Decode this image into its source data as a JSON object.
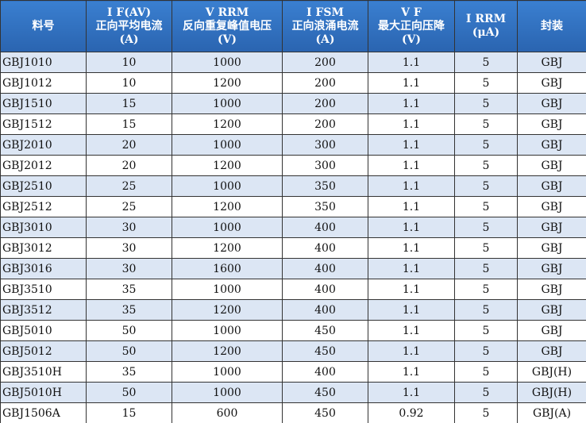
{
  "table": {
    "header": [
      [
        "料号"
      ],
      [
        "I F(AV)",
        "正向平均电流",
        "(A)"
      ],
      [
        "V RRM",
        "反向重复峰值电压",
        "(V)"
      ],
      [
        "I FSM",
        "正向浪涌电流",
        "(A)"
      ],
      [
        "V F",
        "最大正向压降",
        "(V)"
      ],
      [
        "I RRM",
        "(μA)"
      ],
      [
        "封装"
      ]
    ],
    "rows": [
      [
        "GBJ1010",
        "10",
        "1000",
        "200",
        "1.1",
        "5",
        "GBJ"
      ],
      [
        "GBJ1012",
        "10",
        "1200",
        "200",
        "1.1",
        "5",
        "GBJ"
      ],
      [
        "GBJ1510",
        "15",
        "1000",
        "200",
        "1.1",
        "5",
        "GBJ"
      ],
      [
        "GBJ1512",
        "15",
        "1200",
        "200",
        "1.1",
        "5",
        "GBJ"
      ],
      [
        "GBJ2010",
        "20",
        "1000",
        "300",
        "1.1",
        "5",
        "GBJ"
      ],
      [
        "GBJ2012",
        "20",
        "1200",
        "300",
        "1.1",
        "5",
        "GBJ"
      ],
      [
        "GBJ2510",
        "25",
        "1000",
        "350",
        "1.1",
        "5",
        "GBJ"
      ],
      [
        "GBJ2512",
        "25",
        "1200",
        "350",
        "1.1",
        "5",
        "GBJ"
      ],
      [
        "GBJ3010",
        "30",
        "1000",
        "400",
        "1.1",
        "5",
        "GBJ"
      ],
      [
        "GBJ3012",
        "30",
        "1200",
        "400",
        "1.1",
        "5",
        "GBJ"
      ],
      [
        "GBJ3016",
        "30",
        "1600",
        "400",
        "1.1",
        "5",
        "GBJ"
      ],
      [
        "GBJ3510",
        "35",
        "1000",
        "400",
        "1.1",
        "5",
        "GBJ"
      ],
      [
        "GBJ3512",
        "35",
        "1200",
        "400",
        "1.1",
        "5",
        "GBJ"
      ],
      [
        "GBJ5010",
        "50",
        "1000",
        "450",
        "1.1",
        "5",
        "GBJ"
      ],
      [
        "GBJ5012",
        "50",
        "1200",
        "450",
        "1.1",
        "5",
        "GBJ"
      ],
      [
        "GBJ3510H",
        "35",
        "1000",
        "400",
        "1.1",
        "5",
        "GBJ(H)"
      ],
      [
        "GBJ5010H",
        "50",
        "1000",
        "450",
        "1.1",
        "5",
        "GBJ(H)"
      ],
      [
        "GBJ1506A",
        "15",
        "600",
        "450",
        "0.92",
        "5",
        "GBJ(A)"
      ]
    ]
  }
}
